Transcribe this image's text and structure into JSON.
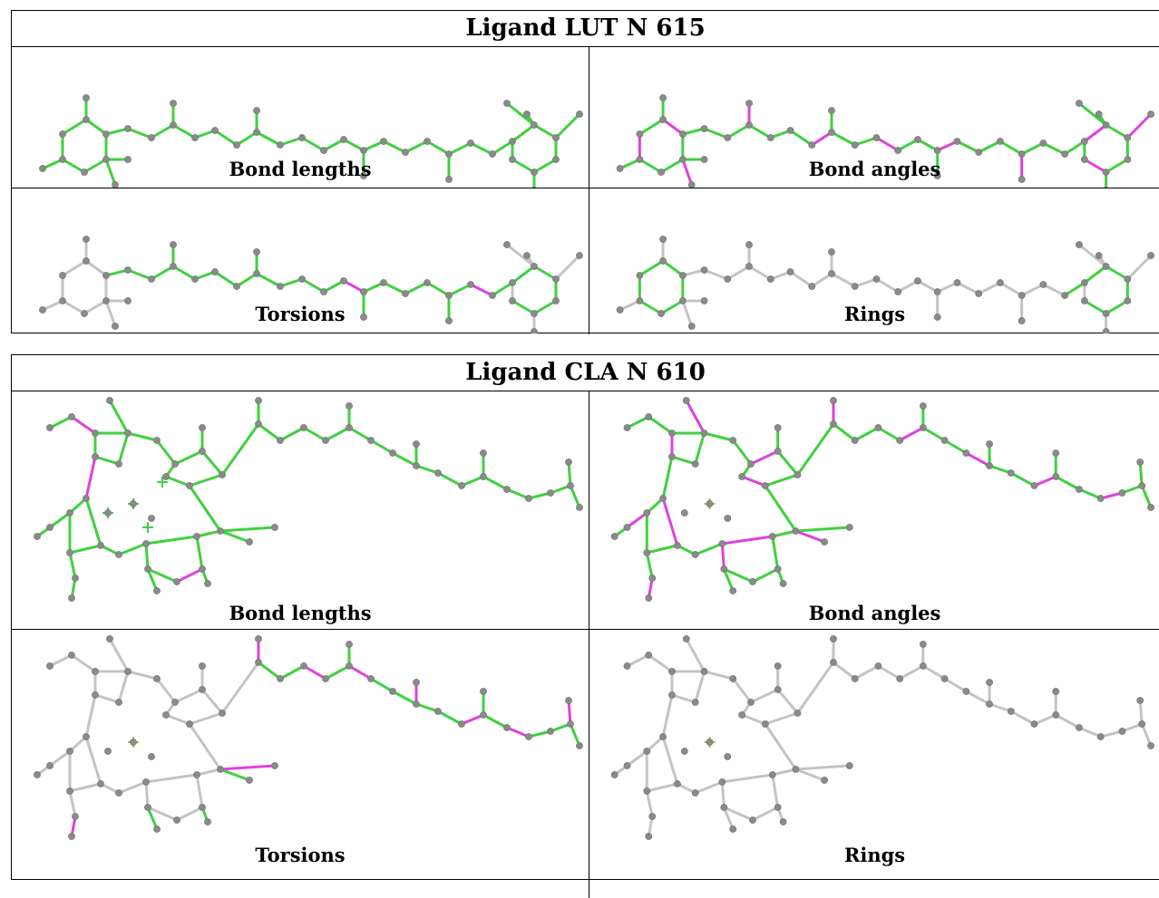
{
  "colors": {
    "good_bond": "#3fd13f",
    "outlier_bond": "#e040e0",
    "neutral_bond": "#c4c4c4",
    "atom": "#8a8a8a",
    "metal_center": "#9acd32"
  },
  "ligands": [
    {
      "title": "Ligand LUT N 615",
      "cells": [
        {
          "label": "Bond lengths"
        },
        {
          "label": "Bond angles"
        },
        {
          "label": "Torsions"
        },
        {
          "label": "Rings"
        }
      ]
    },
    {
      "title": "Ligand CLA N 610",
      "cells": [
        {
          "label": "Bond lengths"
        },
        {
          "label": "Bond angles"
        },
        {
          "label": "Torsions"
        },
        {
          "label": "Rings"
        }
      ]
    }
  ]
}
